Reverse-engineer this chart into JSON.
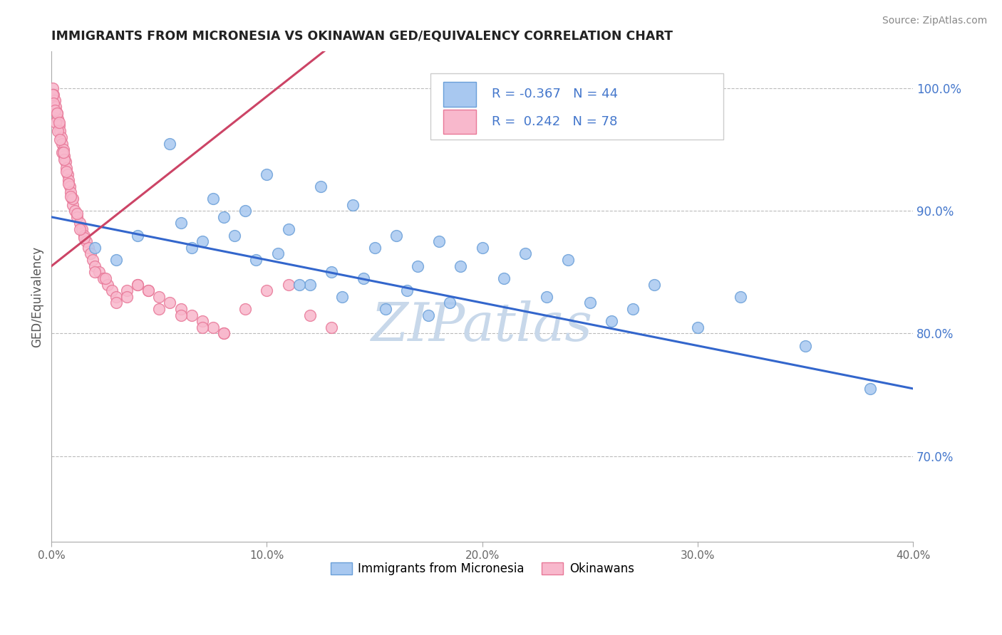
{
  "title": "IMMIGRANTS FROM MICRONESIA VS OKINAWAN GED/EQUIVALENCY CORRELATION CHART",
  "source": "Source: ZipAtlas.com",
  "ylabel": "GED/Equivalency",
  "xlim": [
    0.0,
    40.0
  ],
  "ylim": [
    63.0,
    103.0
  ],
  "yticks": [
    70.0,
    80.0,
    90.0,
    100.0
  ],
  "blue_R": -0.367,
  "blue_N": 44,
  "pink_R": 0.242,
  "pink_N": 78,
  "blue_color": "#a8c8f0",
  "blue_edge": "#6a9fd8",
  "pink_color": "#f8b8cc",
  "pink_edge": "#e87898",
  "blue_line_color": "#3366cc",
  "pink_line_color": "#cc4466",
  "watermark": "ZIPatlas",
  "watermark_color": "#c8d8ea",
  "background": "#ffffff",
  "grid_color": "#bbbbbb",
  "title_color": "#222222",
  "legend_box_color": "#4477cc",
  "blue_scatter_x": [
    5.5,
    10.0,
    7.5,
    9.0,
    12.5,
    8.0,
    11.0,
    14.0,
    16.0,
    18.0,
    20.0,
    22.0,
    15.0,
    17.0,
    24.0,
    6.0,
    8.5,
    13.0,
    19.0,
    21.0,
    28.0,
    32.0,
    10.5,
    12.0,
    14.5,
    16.5,
    18.5,
    7.0,
    9.5,
    11.5,
    13.5,
    15.5,
    17.5,
    4.0,
    6.5,
    23.0,
    25.0,
    26.0,
    27.0,
    30.0,
    35.0,
    38.0,
    3.0,
    2.0
  ],
  "blue_scatter_y": [
    95.5,
    93.0,
    91.0,
    90.0,
    92.0,
    89.5,
    88.5,
    90.5,
    88.0,
    87.5,
    87.0,
    86.5,
    87.0,
    85.5,
    86.0,
    89.0,
    88.0,
    85.0,
    85.5,
    84.5,
    84.0,
    83.0,
    86.5,
    84.0,
    84.5,
    83.5,
    82.5,
    87.5,
    86.0,
    84.0,
    83.0,
    82.0,
    81.5,
    88.0,
    87.0,
    83.0,
    82.5,
    81.0,
    82.0,
    80.5,
    79.0,
    75.5,
    86.0,
    87.0
  ],
  "blue_line_x0": 0.0,
  "blue_line_y0": 89.5,
  "blue_line_x1": 40.0,
  "blue_line_y1": 75.5,
  "pink_scatter_x": [
    0.05,
    0.1,
    0.15,
    0.2,
    0.25,
    0.3,
    0.35,
    0.4,
    0.45,
    0.5,
    0.55,
    0.6,
    0.65,
    0.7,
    0.75,
    0.8,
    0.85,
    0.9,
    0.95,
    1.0,
    1.1,
    1.2,
    1.3,
    1.4,
    1.5,
    1.6,
    1.7,
    1.8,
    1.9,
    2.0,
    2.2,
    2.4,
    2.6,
    2.8,
    3.0,
    3.5,
    4.0,
    4.5,
    5.0,
    5.5,
    6.0,
    6.5,
    7.0,
    7.5,
    8.0,
    9.0,
    10.0,
    11.0,
    12.0,
    13.0,
    0.05,
    0.1,
    0.15,
    0.2,
    0.3,
    0.4,
    0.5,
    0.6,
    0.7,
    0.8,
    1.0,
    1.2,
    1.5,
    2.0,
    2.5,
    3.0,
    3.5,
    4.0,
    4.5,
    5.0,
    6.0,
    7.0,
    8.0,
    0.25,
    0.35,
    0.55,
    0.9,
    1.3
  ],
  "pink_scatter_y": [
    100.0,
    99.5,
    99.0,
    98.5,
    98.0,
    97.5,
    97.0,
    96.5,
    96.0,
    95.5,
    95.0,
    94.5,
    94.0,
    93.5,
    93.0,
    92.5,
    92.0,
    91.5,
    91.0,
    90.5,
    90.0,
    89.5,
    89.0,
    88.5,
    88.0,
    87.5,
    87.0,
    86.5,
    86.0,
    85.5,
    85.0,
    84.5,
    84.0,
    83.5,
    83.0,
    83.5,
    84.0,
    83.5,
    83.0,
    82.5,
    82.0,
    81.5,
    81.0,
    80.5,
    80.0,
    82.0,
    83.5,
    84.0,
    81.5,
    80.5,
    99.5,
    98.8,
    98.2,
    97.2,
    96.5,
    95.8,
    94.8,
    94.2,
    93.2,
    92.2,
    91.0,
    89.8,
    87.8,
    85.0,
    84.5,
    82.5,
    83.0,
    84.0,
    83.5,
    82.0,
    81.5,
    80.5,
    80.0,
    98.0,
    97.2,
    94.8,
    91.2,
    88.5
  ],
  "pink_line_x0": 0.0,
  "pink_line_y0": 85.5,
  "pink_line_x1": 13.0,
  "pink_line_y1": 103.5
}
